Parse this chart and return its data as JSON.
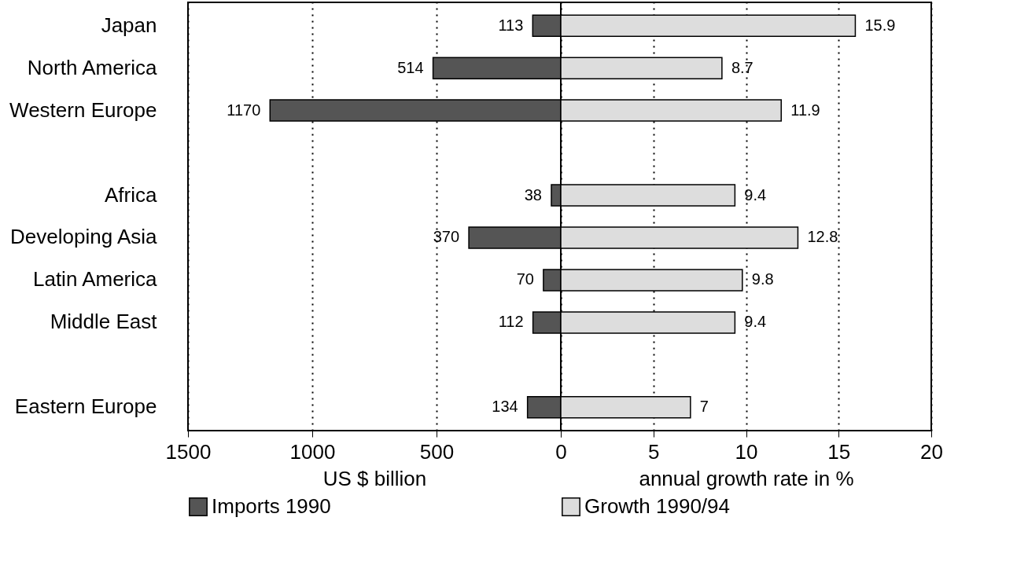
{
  "chart_data": [
    {
      "type": "bar",
      "orientation": "horizontal",
      "categories": [
        "Japan",
        "North America",
        "Western Europe",
        null,
        "Africa",
        "Developing Asia",
        "Latin America",
        "Middle East",
        null,
        "Eastern Europe"
      ],
      "series": [
        {
          "name": "Imports 1990",
          "color": "#555555",
          "values": [
            113,
            514,
            1170,
            null,
            38,
            370,
            70,
            112,
            null,
            134
          ]
        }
      ],
      "xlim": [
        1500,
        0
      ],
      "xticks": [
        1500,
        1000,
        500,
        0
      ],
      "xlabel": "US $ billion",
      "grid": "x",
      "legend": "bottom",
      "data_labels": true
    },
    {
      "type": "bar",
      "orientation": "horizontal",
      "categories": [
        null,
        null,
        null,
        null,
        null,
        null,
        null,
        null,
        null,
        null
      ],
      "series": [
        {
          "name": "Growth 1990/94",
          "color": "#dddddd",
          "values": [
            15.9,
            8.7,
            11.9,
            null,
            9.4,
            12.8,
            9.8,
            9.4,
            null,
            7
          ]
        }
      ],
      "xlim": [
        0,
        20
      ],
      "xticks": [
        {
          "value": 0,
          "label": null
        },
        5,
        10,
        15,
        20
      ],
      "xlabel": "annual growth rate in %",
      "grid": "x",
      "legend": "bottom",
      "data_labels": true,
      "tick_labels": "x"
    }
  ]
}
